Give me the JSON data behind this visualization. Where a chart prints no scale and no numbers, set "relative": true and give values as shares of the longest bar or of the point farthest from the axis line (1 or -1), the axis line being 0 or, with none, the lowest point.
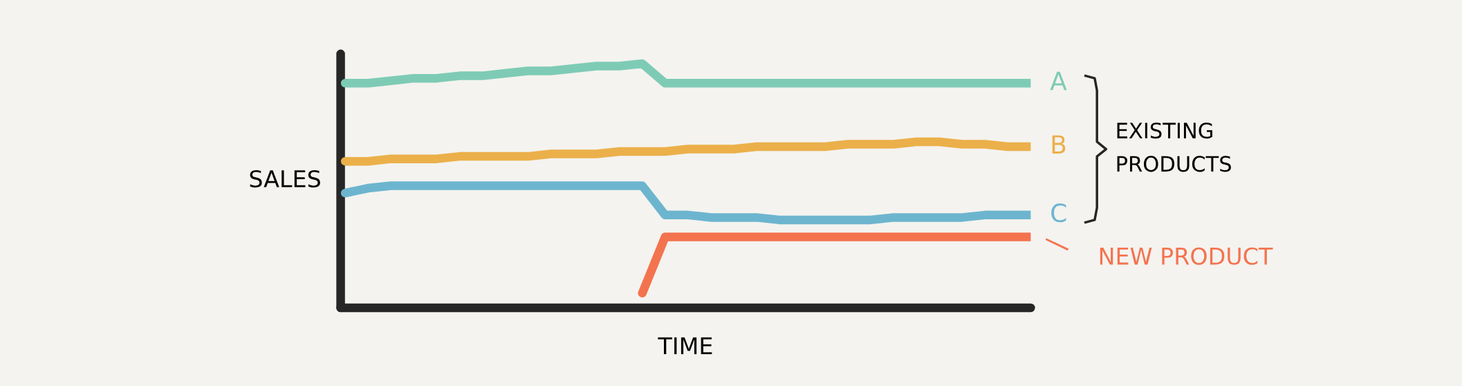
{
  "chart_data": {
    "type": "line",
    "relative": true,
    "xlabel": "TIME",
    "ylabel": "SALES",
    "marker": "none",
    "line_style": "solid",
    "categories": [
      null,
      null,
      null,
      null,
      null,
      null,
      null,
      null,
      null,
      null,
      null,
      null,
      null,
      null,
      null,
      null,
      null,
      null,
      null,
      null,
      null,
      null,
      null,
      null,
      null,
      null,
      null,
      null,
      null,
      null,
      null
    ],
    "series": [
      {
        "name": "A",
        "color": "#7ecbb5",
        "values": [
          0.92,
          0.92,
          0.93,
          0.94,
          0.94,
          0.95,
          0.95,
          0.96,
          0.97,
          0.97,
          0.98,
          0.99,
          0.99,
          1.0,
          0.92,
          0.92,
          0.92,
          0.92,
          0.92,
          0.92,
          0.92,
          0.92,
          0.92,
          0.92,
          0.92,
          0.92,
          0.92,
          0.92,
          0.92,
          0.92,
          0.92
        ]
      },
      {
        "name": "B",
        "color": "#ebb04a",
        "values": [
          0.6,
          0.6,
          0.61,
          0.61,
          0.61,
          0.62,
          0.62,
          0.62,
          0.62,
          0.63,
          0.63,
          0.63,
          0.64,
          0.64,
          0.64,
          0.65,
          0.65,
          0.65,
          0.66,
          0.66,
          0.66,
          0.66,
          0.67,
          0.67,
          0.67,
          0.68,
          0.68,
          0.67,
          0.67,
          0.66,
          0.66
        ]
      },
      {
        "name": "C",
        "color": "#6db5cf",
        "values": [
          0.47,
          0.49,
          0.5,
          0.5,
          0.5,
          0.5,
          0.5,
          0.5,
          0.5,
          0.5,
          0.5,
          0.5,
          0.5,
          0.5,
          0.38,
          0.38,
          0.37,
          0.37,
          0.37,
          0.36,
          0.36,
          0.36,
          0.36,
          0.36,
          0.37,
          0.37,
          0.37,
          0.37,
          0.38,
          0.38,
          0.38
        ]
      },
      {
        "name": "NEW PRODUCT",
        "color": "#f4734f",
        "values": [
          null,
          null,
          null,
          null,
          null,
          null,
          null,
          null,
          null,
          null,
          null,
          null,
          null,
          0.06,
          0.29,
          0.29,
          0.29,
          0.29,
          0.29,
          0.29,
          0.29,
          0.29,
          0.29,
          0.29,
          0.29,
          0.29,
          0.29,
          0.29,
          0.29,
          0.29,
          0.29
        ]
      }
    ],
    "annotations": [
      "EXISTING\nPRODUCTS"
    ]
  }
}
